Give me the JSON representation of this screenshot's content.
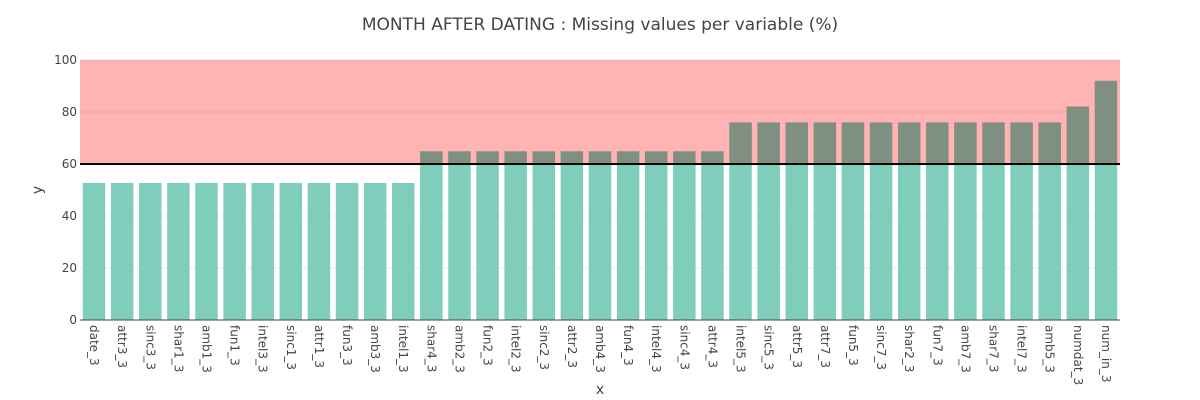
{
  "chart_data": {
    "type": "bar",
    "title": "MONTH AFTER DATING : Missing values per variable (%)",
    "xlabel": "x",
    "ylabel": "y",
    "ylim": [
      0,
      100
    ],
    "yticks": [
      0,
      20,
      40,
      60,
      80,
      100
    ],
    "threshold": 60,
    "highlight_range": [
      60,
      100
    ],
    "categories": [
      "date_3",
      "attr3_3",
      "sinc3_3",
      "shar1_3",
      "amb1_3",
      "fun1_3",
      "intel3_3",
      "sinc1_3",
      "attr1_3",
      "fun3_3",
      "amb3_3",
      "intel1_3",
      "shar4_3",
      "amb2_3",
      "fun2_3",
      "intel2_3",
      "sinc2_3",
      "attr2_3",
      "amb4_3",
      "fun4_3",
      "intel4_3",
      "sinc4_3",
      "attr4_3",
      "intel5_3",
      "sinc5_3",
      "attr5_3",
      "attr7_3",
      "fun5_3",
      "sinc7_3",
      "shar2_3",
      "fun7_3",
      "amb7_3",
      "shar7_3",
      "intel7_3",
      "amb5_3",
      "numdat_3",
      "num_in_3"
    ],
    "values": [
      52.7,
      52.7,
      52.7,
      52.7,
      52.7,
      52.7,
      52.7,
      52.7,
      52.7,
      52.7,
      52.7,
      52.7,
      64.9,
      64.9,
      64.9,
      64.9,
      64.9,
      64.9,
      64.9,
      64.9,
      64.9,
      64.9,
      64.9,
      76.0,
      76.0,
      76.0,
      76.0,
      76.0,
      76.0,
      76.0,
      76.0,
      76.0,
      76.0,
      76.0,
      76.0,
      82.1,
      92.0
    ],
    "colors": {
      "bar": "#7fcdbb",
      "highlight_band": "#ff9999",
      "threshold_line": "#000000",
      "grid": "#eeeeee",
      "text": "#444444"
    }
  }
}
